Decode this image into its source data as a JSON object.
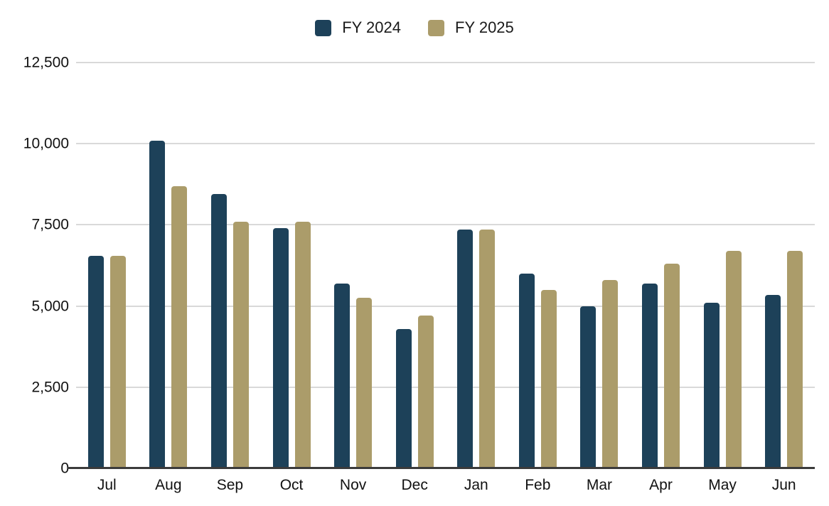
{
  "chart_data": {
    "type": "bar",
    "title": "",
    "categories": [
      "Jul",
      "Aug",
      "Sep",
      "Oct",
      "Nov",
      "Dec",
      "Jan",
      "Feb",
      "Mar",
      "Apr",
      "May",
      "Jun"
    ],
    "series": [
      {
        "name": "FY 2024",
        "color": "#1d4159",
        "values": [
          6550,
          10100,
          8450,
          7400,
          5700,
          4300,
          7350,
          6000,
          5000,
          5700,
          5100,
          5350
        ]
      },
      {
        "name": "FY 2025",
        "color": "#ab9c6a",
        "values": [
          6550,
          8700,
          7600,
          7600,
          5250,
          4700,
          7350,
          5500,
          5800,
          6300,
          6700,
          6700
        ]
      }
    ],
    "ylim": [
      0,
      12500
    ],
    "yticks": [
      0,
      2500,
      5000,
      7500,
      10000,
      12500
    ],
    "ytick_labels": [
      "0",
      "2,500",
      "5,000",
      "7,500",
      "10,000",
      "12,500"
    ],
    "xlabel": "",
    "ylabel": "",
    "legend_position": "top-center",
    "grid": "horizontal",
    "gridline_color": "#d9d9d9",
    "axis_line_color": "#3b3b3b",
    "background": "#ffffff"
  }
}
